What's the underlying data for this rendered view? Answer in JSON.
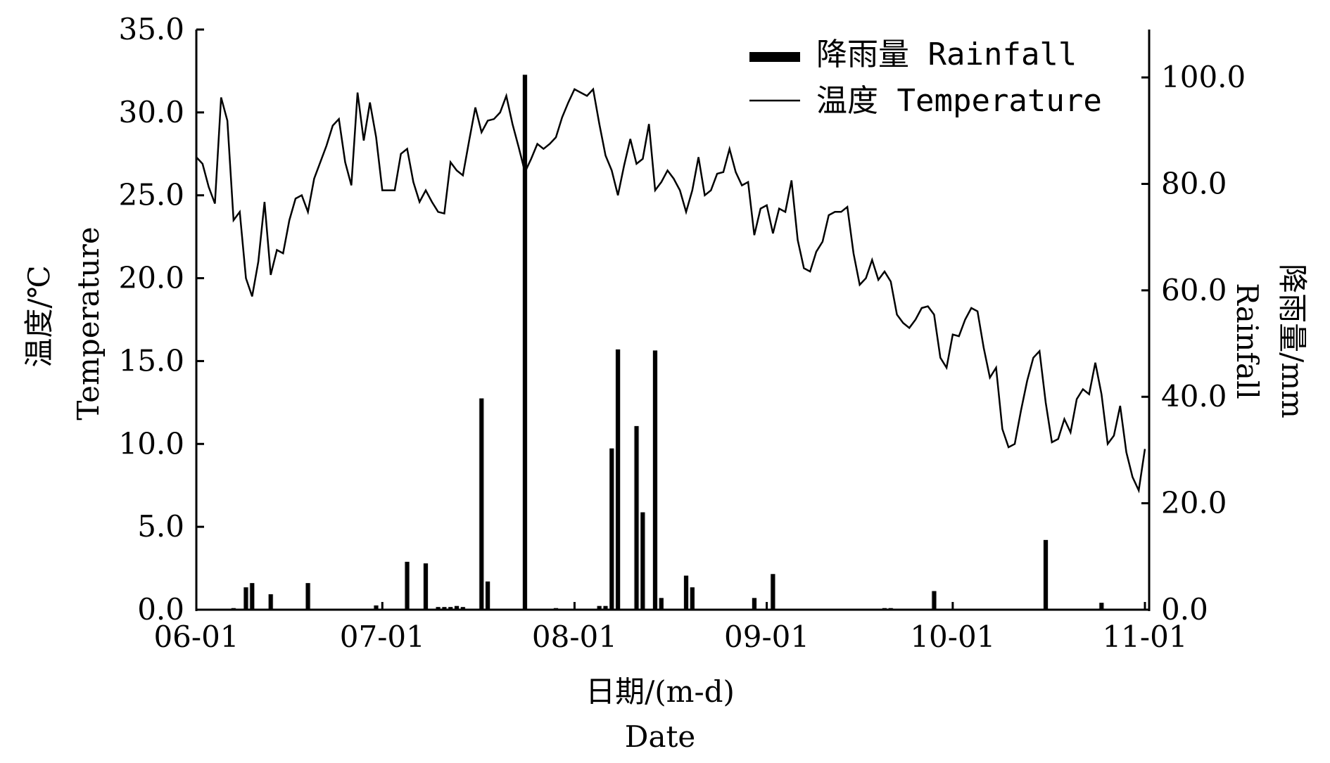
{
  "chart_data": {
    "type": "bar+line",
    "x_start_date": "06-01",
    "xlabel_cn": "日期/(m-d)",
    "xlabel_en": "Date",
    "ylabel_left_cn": "温度/℃",
    "ylabel_left_en": "Temperature",
    "ylabel_right_cn": "降雨量/mm",
    "ylabel_right_en": "Rainfall",
    "x_ticks": [
      {
        "label": "06-01",
        "day": 0
      },
      {
        "label": "07-01",
        "day": 30
      },
      {
        "label": "08-01",
        "day": 61
      },
      {
        "label": "09-01",
        "day": 92
      },
      {
        "label": "10-01",
        "day": 122
      },
      {
        "label": "11-01",
        "day": 153
      }
    ],
    "y_left_ticks": [
      "0.0",
      "5.0",
      "10.0",
      "15.0",
      "20.0",
      "25.0",
      "30.0",
      "35.0"
    ],
    "y_left_lim": [
      0,
      35
    ],
    "y_right_ticks": [
      "0.0",
      "20.0",
      "40.0",
      "60.0",
      "80.0",
      "100.0"
    ],
    "y_right_lim": [
      0,
      109
    ],
    "legend": {
      "placement": "top-right",
      "rainfall": "降雨量 Rainfall",
      "temperature": "温度 Temperature"
    },
    "series": [
      {
        "name": "温度 Temperature",
        "axis": "left",
        "kind": "line",
        "values": [
          27.3,
          26.9,
          25.5,
          24.5,
          30.9,
          29.5,
          23.5,
          24.0,
          20.0,
          18.9,
          21.0,
          24.6,
          20.2,
          21.7,
          21.5,
          23.5,
          24.8,
          25.0,
          24.0,
          26.0,
          27.0,
          28.0,
          29.2,
          29.6,
          27.0,
          25.6,
          31.2,
          28.3,
          30.6,
          28.5,
          25.3,
          25.3,
          25.3,
          27.5,
          27.8,
          25.8,
          24.6,
          25.3,
          24.6,
          24.0,
          23.9,
          27.0,
          26.5,
          26.2,
          28.3,
          30.3,
          28.8,
          29.5,
          29.6,
          30.0,
          31.0,
          29.3,
          27.9,
          26.4,
          27.2,
          28.1,
          27.8,
          28.1,
          28.5,
          29.7,
          30.6,
          31.4,
          31.2,
          31.0,
          31.4,
          29.3,
          27.4,
          26.5,
          25.0,
          26.8,
          28.4,
          26.9,
          27.2,
          29.3,
          25.3,
          25.8,
          26.5,
          26.0,
          25.3,
          24.0,
          25.3,
          27.3,
          25.0,
          25.3,
          26.3,
          26.4,
          27.8,
          26.4,
          25.6,
          25.8,
          22.6,
          24.2,
          24.4,
          22.7,
          24.2,
          24.0,
          25.9,
          22.3,
          20.6,
          20.4,
          21.6,
          22.2,
          23.8,
          24.0,
          24.0,
          24.3,
          21.5,
          19.6,
          20.0,
          21.1,
          19.9,
          20.4,
          19.8,
          17.8,
          17.3,
          17.0,
          17.5,
          18.2,
          18.3,
          17.8,
          15.2,
          14.6,
          16.6,
          16.5,
          17.5,
          18.2,
          18.0,
          15.8,
          14.0,
          14.6,
          10.9,
          9.8,
          10.0,
          12.0,
          13.8,
          15.2,
          15.6,
          12.5,
          10.1,
          10.3,
          11.5,
          10.7,
          12.7,
          13.3,
          13.0,
          14.9,
          13.0,
          10.0,
          10.5,
          12.3,
          9.5,
          8.0,
          7.2,
          9.7
        ]
      },
      {
        "name": "降雨量 Rainfall",
        "axis": "right",
        "kind": "bar",
        "points": [
          {
            "day": 6,
            "mm": 0.3
          },
          {
            "day": 8,
            "mm": 4.2
          },
          {
            "day": 9,
            "mm": 5.0
          },
          {
            "day": 12,
            "mm": 2.9
          },
          {
            "day": 18,
            "mm": 5.0
          },
          {
            "day": 29,
            "mm": 0.8
          },
          {
            "day": 34,
            "mm": 9.0
          },
          {
            "day": 37,
            "mm": 8.7
          },
          {
            "day": 39,
            "mm": 0.5
          },
          {
            "day": 40,
            "mm": 0.5
          },
          {
            "day": 41,
            "mm": 0.5
          },
          {
            "day": 42,
            "mm": 0.7
          },
          {
            "day": 43,
            "mm": 0.5
          },
          {
            "day": 46,
            "mm": 39.7
          },
          {
            "day": 47,
            "mm": 5.3
          },
          {
            "day": 53,
            "mm": 100.5
          },
          {
            "day": 58,
            "mm": 0.3
          },
          {
            "day": 65,
            "mm": 0.7
          },
          {
            "day": 66,
            "mm": 0.7
          },
          {
            "day": 67,
            "mm": 30.3
          },
          {
            "day": 68,
            "mm": 48.9
          },
          {
            "day": 71,
            "mm": 34.5
          },
          {
            "day": 72,
            "mm": 18.3
          },
          {
            "day": 74,
            "mm": 48.7
          },
          {
            "day": 75,
            "mm": 2.2
          },
          {
            "day": 79,
            "mm": 6.4
          },
          {
            "day": 80,
            "mm": 4.2
          },
          {
            "day": 90,
            "mm": 2.2
          },
          {
            "day": 93,
            "mm": 6.7
          },
          {
            "day": 111,
            "mm": 0.3
          },
          {
            "day": 112,
            "mm": 0.3
          },
          {
            "day": 119,
            "mm": 3.5
          },
          {
            "day": 137,
            "mm": 13.1
          },
          {
            "day": 146,
            "mm": 1.3
          }
        ]
      }
    ]
  }
}
